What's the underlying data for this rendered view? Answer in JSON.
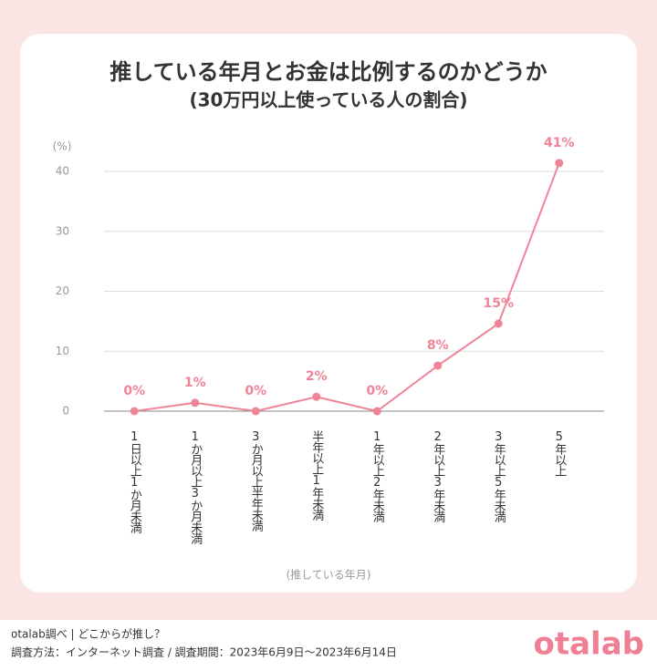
{
  "chart_data": {
    "type": "line",
    "title": "推している年月とお金は比例するのかどうか",
    "subtitle": "(30万円以上使っている人の割合)",
    "y_label": "(%)",
    "x_label": "(推している年月)",
    "categories": [
      "1日以上1か月未満",
      "1か月以上3か月未満",
      "3か月以上半年未満",
      "半年以上1年未満",
      "1年以上2年未満",
      "2年以上3年未満",
      "3年以上5年未満",
      "5年以上"
    ],
    "values": [
      0,
      1.4,
      0,
      2.4,
      0,
      7.6,
      14.6,
      41.4
    ],
    "value_labels": [
      "0%",
      "1%",
      "0%",
      "2%",
      "0%",
      "8%",
      "15%",
      "41%"
    ],
    "color": "#ef8497",
    "ylim": [
      0,
      40
    ],
    "yticks": [
      0,
      10,
      20,
      30,
      40
    ],
    "grid": true
  },
  "footer": {
    "source": "otalab調べ | どこからが推し？",
    "method": "調査方法：インターネット調査 / 調査期間：2023年6月9日〜2023年6月14日",
    "logo": "otalab"
  }
}
